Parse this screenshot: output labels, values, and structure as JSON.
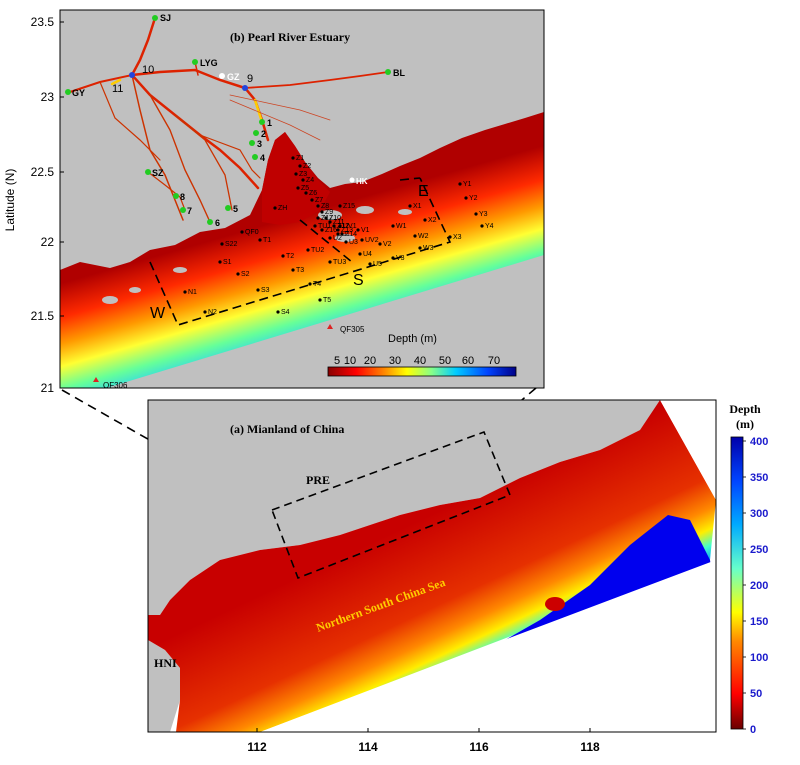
{
  "panel_b": {
    "title": "(b) Pearl River Estuary",
    "ylabel": "Latitude (N)",
    "yticks": [
      "23.5",
      "23",
      "22.5",
      "22",
      "21.5",
      "21"
    ],
    "colorbar_title": "Depth (m)",
    "colorbar_ticks": [
      "5",
      "10",
      "20",
      "30",
      "40",
      "50",
      "60",
      "70"
    ],
    "region_labels": {
      "west": "W",
      "south": "S",
      "east": "E"
    },
    "river_gauges": [
      {
        "name": "SJ",
        "color": "#22cc22"
      },
      {
        "name": "LYG",
        "color": "#22cc22"
      },
      {
        "name": "GZ",
        "color": "#ffffff"
      },
      {
        "name": "BL",
        "color": "#22cc22"
      },
      {
        "name": "GY",
        "color": "#22cc22"
      },
      {
        "name": "SZ",
        "color": "#22cc22"
      },
      {
        "name": "HK",
        "color": "#ffffff"
      }
    ],
    "outlet_numbers": [
      "10",
      "11",
      "9",
      "1",
      "2",
      "3",
      "4",
      "5",
      "6",
      "7",
      "8"
    ],
    "stations": [
      "Z1",
      "Z2",
      "Z3",
      "Z4",
      "Z5",
      "Z6",
      "Z7",
      "Z8",
      "Z9",
      "Z10",
      "Z11",
      "Z12",
      "Z13",
      "Z14",
      "Z15",
      "Z16",
      "Z17",
      "ZH",
      "X1",
      "X2",
      "X3",
      "Y1",
      "Y2",
      "Y3",
      "Y4",
      "W1",
      "W2",
      "W3",
      "V1",
      "V2",
      "V3",
      "UV1",
      "UV2",
      "U1",
      "U2",
      "U3",
      "U4",
      "U5",
      "TU1",
      "TU2",
      "TU3",
      "T1",
      "T2",
      "T3",
      "T4",
      "T5",
      "S1",
      "S2",
      "S3",
      "S4",
      "S22",
      "N1",
      "N2",
      "QF0"
    ],
    "qf_stations": [
      "QF305",
      "QF306"
    ]
  },
  "panel_a": {
    "title": "(a) Mianland of China",
    "pre_label": "PRE",
    "sea_label": "Northern South China Sea",
    "hni_label": "HNI",
    "xticks": [
      "112",
      "114",
      "116",
      "118"
    ],
    "colorbar_title_line1": "Depth",
    "colorbar_title_line2": "(m)",
    "colorbar_ticks": [
      "400",
      "350",
      "300",
      "250",
      "200",
      "150",
      "100",
      "50",
      "0"
    ]
  },
  "colors": {
    "land": "#c0c0c0",
    "shallow": "#cc0000",
    "deep": "#0000cc"
  }
}
